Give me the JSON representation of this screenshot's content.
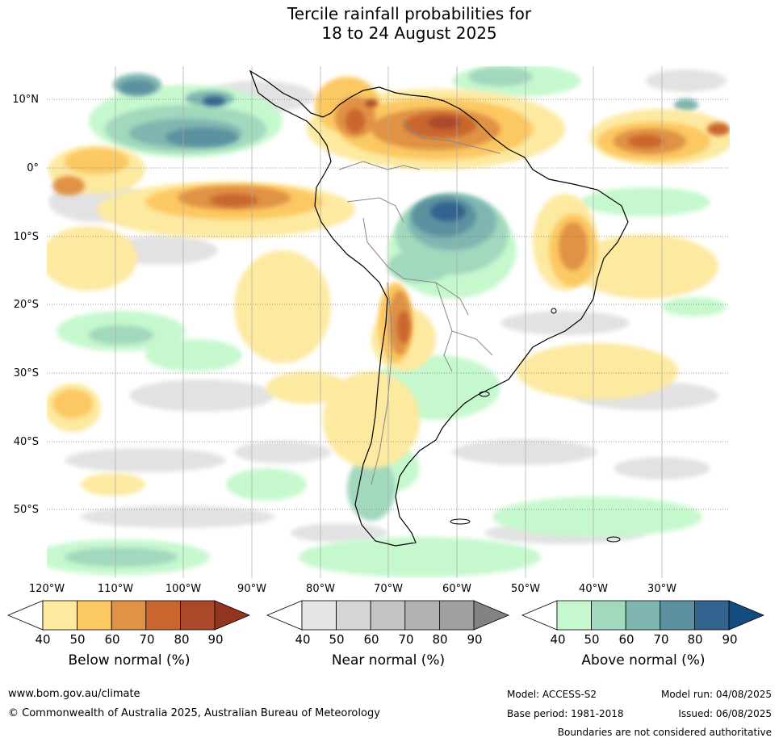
{
  "title": {
    "line1": "Tercile rainfall probabilities for",
    "line2": "18 to 24 August 2025"
  },
  "axes": {
    "lat_labels": [
      "10°N",
      "0°",
      "10°S",
      "20°S",
      "30°S",
      "40°S",
      "50°S"
    ],
    "lon_labels": [
      "120°W",
      "110°W",
      "100°W",
      "90°W",
      "80°W",
      "70°W",
      "60°W",
      "50°W",
      "40°W",
      "30°W"
    ]
  },
  "colorbars": [
    {
      "label": "Below normal (%)",
      "ticks": [
        "40",
        "50",
        "60",
        "70",
        "80",
        "90"
      ],
      "colors": [
        "#ffffff",
        "#fde9a0",
        "#fcc862",
        "#e09245",
        "#c9662f",
        "#ab4829",
        "#93341f"
      ]
    },
    {
      "label": "Near normal (%)",
      "ticks": [
        "40",
        "50",
        "60",
        "70",
        "80",
        "90"
      ],
      "colors": [
        "#ffffff",
        "#e6e6e6",
        "#d5d5d5",
        "#c4c4c4",
        "#b2b2b2",
        "#a0a0a0",
        "#828282"
      ]
    },
    {
      "label": "Above normal (%)",
      "ticks": [
        "40",
        "50",
        "60",
        "70",
        "80",
        "90"
      ],
      "colors": [
        "#ffffff",
        "#c6f8ce",
        "#a2d8bd",
        "#7fb6b0",
        "#5c91a0",
        "#33638f",
        "#134d80"
      ]
    }
  ],
  "footer": {
    "website": "www.bom.gov.au/climate",
    "copyright": "© Commonwealth of Australia 2025, Australian Bureau of Meteorology",
    "model": "Model: ACCESS-S2",
    "base_period": "Base period: 1981-2018",
    "model_run": "Model run: 04/08/2025",
    "issued": "Issued: 06/08/2025",
    "disclaimer": "Boundaries are not considered authoritative"
  }
}
